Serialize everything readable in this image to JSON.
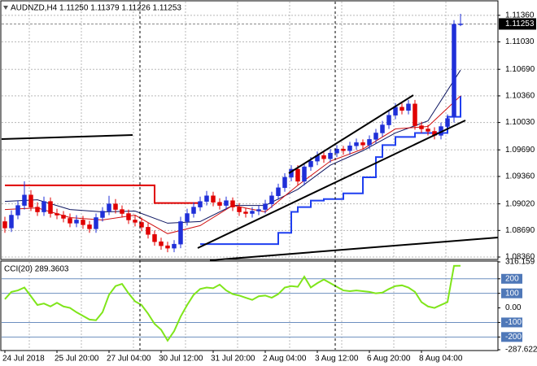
{
  "chart_data": [
    {
      "type": "candlestick",
      "title": "AUDNZD,H4  1.11250 1.11379 1.11226 1.11253",
      "categories": [
        "24 Jul 2018",
        null,
        null,
        null,
        null,
        null,
        null,
        null,
        "25 Jul 20:00",
        null,
        null,
        null,
        null,
        null,
        null,
        null,
        "27 Jul 04:00",
        null,
        null,
        null,
        null,
        null,
        null,
        null,
        "30 Jul 12:00",
        null,
        null,
        null,
        null,
        null,
        null,
        null,
        "31 Jul 20:00",
        null,
        null,
        null,
        null,
        null,
        null,
        null,
        "2 Aug 04:00",
        null,
        null,
        null,
        null,
        null,
        null,
        null,
        "3 Aug 12:00",
        null,
        null,
        null,
        null,
        null,
        null,
        null,
        "6 Aug 20:00",
        null,
        null,
        null,
        null,
        null,
        null,
        null,
        "8 Aug 04:00",
        null,
        null,
        null,
        null,
        null,
        null
      ],
      "open": [
        1.088,
        1.0872,
        1.0888,
        1.09,
        1.0913,
        1.0898,
        1.0892,
        1.0905,
        1.089,
        1.0888,
        1.0884,
        1.0878,
        1.0882,
        1.0876,
        1.0871,
        1.0885,
        1.0893,
        1.0902,
        1.0895,
        1.089,
        1.0882,
        1.0879,
        1.0873,
        1.0864,
        1.0855,
        1.085,
        1.0847,
        1.0852,
        1.088,
        1.089,
        1.0898,
        1.0905,
        1.0912,
        1.0904,
        1.09,
        1.0906,
        1.0898,
        1.0892,
        1.089,
        1.0893,
        1.0895,
        1.0902,
        1.0912,
        1.0922,
        1.0935,
        1.0945,
        1.093,
        1.0948,
        1.0955,
        1.0962,
        1.0958,
        1.0965,
        1.097,
        1.0968,
        1.0974,
        1.0978,
        1.0975,
        1.0982,
        1.099,
        1.1,
        1.1012,
        1.1022,
        1.1018,
        1.1026,
        1.0999,
        1.0995,
        1.0992,
        1.0987,
        1.0998,
        1.101,
        1.1125
      ],
      "high": [
        1.0886,
        1.0894,
        1.0906,
        1.093,
        1.0919,
        1.0904,
        1.0911,
        1.091,
        1.0896,
        1.0893,
        1.089,
        1.0888,
        1.0887,
        1.0881,
        1.089,
        1.0898,
        1.0912,
        1.0908,
        1.09,
        1.0895,
        1.0888,
        1.0885,
        1.0878,
        1.0869,
        1.086,
        1.0855,
        1.0857,
        1.0886,
        1.0896,
        1.0904,
        1.0911,
        1.0918,
        1.0917,
        1.0909,
        1.0911,
        1.091,
        1.0903,
        1.0897,
        1.0898,
        1.09,
        1.0907,
        1.0917,
        1.0927,
        1.094,
        1.095,
        1.095,
        1.0953,
        1.096,
        1.0967,
        1.0966,
        1.097,
        1.0975,
        1.0974,
        1.0979,
        1.0983,
        1.0982,
        1.0987,
        1.0995,
        1.1005,
        1.1017,
        1.1027,
        1.1027,
        1.1031,
        1.1031,
        1.1004,
        1.1,
        1.0997,
        1.1003,
        1.1013,
        1.113,
        1.11379
      ],
      "low": [
        1.0866,
        1.0867,
        1.0883,
        1.0895,
        1.0893,
        1.0887,
        1.0887,
        1.0885,
        1.0883,
        1.0879,
        1.0873,
        1.0873,
        1.0871,
        1.0866,
        1.0866,
        1.088,
        1.0888,
        1.089,
        1.0885,
        1.0877,
        1.0874,
        1.0868,
        1.0859,
        1.085,
        1.0845,
        1.0842,
        1.0842,
        1.0847,
        1.0875,
        1.0885,
        1.0893,
        1.09,
        1.0899,
        1.0895,
        1.0895,
        1.0893,
        1.0887,
        1.0885,
        1.0885,
        1.0888,
        1.089,
        1.0897,
        1.0907,
        1.0917,
        1.093,
        1.0925,
        1.0925,
        1.0943,
        1.095,
        1.0953,
        1.0953,
        1.096,
        1.0963,
        1.0963,
        1.0969,
        1.097,
        1.097,
        1.0977,
        1.0985,
        1.0995,
        1.1007,
        1.1013,
        1.1013,
        1.0994,
        1.099,
        1.0987,
        1.0982,
        1.0982,
        1.0993,
        1.1003,
        1.11226
      ],
      "close": [
        1.0872,
        1.0888,
        1.09,
        1.0913,
        1.0898,
        1.0892,
        1.0905,
        1.089,
        1.0888,
        1.0884,
        1.0878,
        1.0882,
        1.0876,
        1.0871,
        1.0885,
        1.0893,
        1.0902,
        1.0895,
        1.089,
        1.0882,
        1.0879,
        1.0873,
        1.0864,
        1.0855,
        1.085,
        1.0847,
        1.0852,
        1.088,
        1.089,
        1.0898,
        1.0905,
        1.0912,
        1.0904,
        1.09,
        1.0906,
        1.0898,
        1.0892,
        1.089,
        1.0893,
        1.0895,
        1.0902,
        1.0912,
        1.0922,
        1.0935,
        1.0945,
        1.093,
        1.0948,
        1.0955,
        1.0962,
        1.0958,
        1.0965,
        1.097,
        1.0968,
        1.0974,
        1.0978,
        1.0975,
        1.0982,
        1.099,
        1.1,
        1.1012,
        1.1022,
        1.1018,
        1.1026,
        1.0999,
        1.0995,
        1.0992,
        1.0987,
        1.0998,
        1.1008,
        1.1125,
        1.11253
      ],
      "up_color": "#1f2fd8",
      "down_color": "#e00000",
      "lines": [
        {
          "color": "#e00000",
          "step": true,
          "x": [
            0,
            23,
            30
          ],
          "values": [
            1.0925,
            1.0903,
            1.0903
          ]
        },
        {
          "color": "#1f3ff0",
          "step": true,
          "x": [
            30,
            42,
            44,
            45,
            47,
            49,
            52,
            55,
            57,
            58,
            60,
            63,
            68,
            70
          ],
          "values": [
            1.0852,
            1.0866,
            1.0892,
            1.0898,
            1.0906,
            1.0908,
            1.0915,
            1.0935,
            1.096,
            1.0975,
            1.0985,
            1.099,
            1.101,
            1.1036
          ]
        },
        {
          "color": "#0c1560",
          "x": [
            0,
            5,
            10,
            15,
            20,
            25,
            30,
            35,
            40,
            45,
            50,
            55,
            60,
            65,
            70
          ],
          "values": [
            1.0905,
            1.0907,
            1.0895,
            1.0892,
            1.0893,
            1.0878,
            1.088,
            1.09,
            1.09,
            1.092,
            1.095,
            1.0968,
            1.099,
            1.1005,
            1.1068
          ]
        },
        {
          "color": "#d01010",
          "x": [
            0,
            5,
            10,
            15,
            20,
            25,
            30,
            35,
            40,
            45,
            50,
            55,
            60,
            65,
            70
          ],
          "values": [
            1.0895,
            1.0897,
            1.0885,
            1.0882,
            1.0888,
            1.0865,
            1.0875,
            1.09,
            1.0892,
            1.0925,
            1.0955,
            1.097,
            1.0995,
            1.0998,
            1.1036
          ]
        }
      ],
      "ylim": [
        1.0834,
        1.1153
      ],
      "yticks": [
        {
          "value": 1.1136,
          "label": "1.11360"
        },
        {
          "value": 1.1103,
          "label": "1.11030"
        },
        {
          "value": 1.1069,
          "label": "1.10690"
        },
        {
          "value": 1.1036,
          "label": "1.10360"
        },
        {
          "value": 1.1003,
          "label": "1.10030"
        },
        {
          "value": 1.0969,
          "label": "1.09690"
        },
        {
          "value": 1.0936,
          "label": "1.09360"
        },
        {
          "value": 1.0902,
          "label": "1.09020"
        },
        {
          "value": 1.0869,
          "label": "1.08690"
        },
        {
          "value": 1.0836,
          "label": "1.08360"
        }
      ],
      "last_price": 1.11253,
      "grid": true
    },
    {
      "type": "line",
      "title": "CCI(20) 289.3603",
      "color": "#7fe51a",
      "values": [
        60,
        110,
        120,
        140,
        80,
        20,
        30,
        10,
        35,
        10,
        0,
        -30,
        -55,
        -80,
        -85,
        -30,
        90,
        150,
        165,
        100,
        45,
        20,
        -40,
        -110,
        -150,
        -225,
        -160,
        -60,
        20,
        90,
        130,
        140,
        135,
        160,
        120,
        95,
        85,
        70,
        55,
        80,
        85,
        70,
        95,
        140,
        150,
        145,
        215,
        140,
        170,
        195,
        170,
        145,
        120,
        115,
        120,
        115,
        110,
        100,
        105,
        130,
        150,
        155,
        140,
        110,
        40,
        10,
        0,
        20,
        40,
        289,
        289.3603
      ],
      "ylim": [
        -287.622,
        316.159
      ],
      "yticks": [
        316.159,
        200,
        100,
        {
          "value": 0,
          "label": "0.00"
        },
        -100,
        -200,
        -287.622
      ],
      "levels": [
        200,
        100,
        -100,
        -200
      ]
    }
  ]
}
